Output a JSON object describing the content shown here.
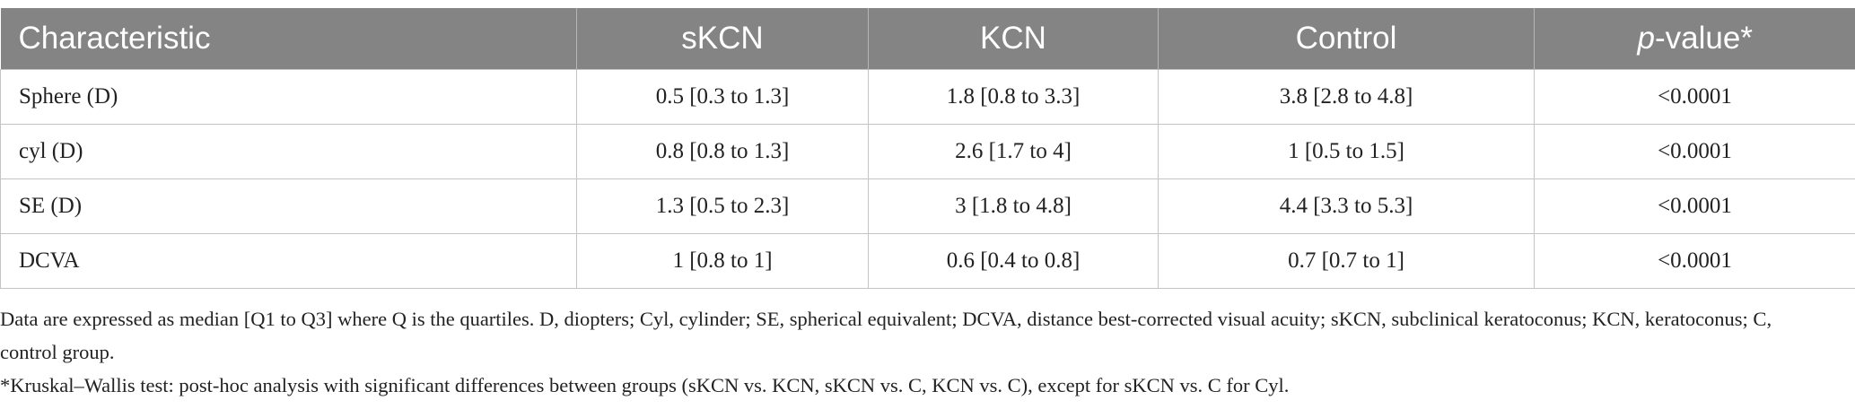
{
  "table": {
    "header": [
      "Characteristic",
      "sKCN",
      "KCN",
      "Control",
      [
        "p",
        "-value*"
      ]
    ],
    "rows": [
      [
        "Sphere (D)",
        "0.5 [0.3 to 1.3]",
        "1.8 [0.8 to 3.3]",
        "3.8 [2.8 to 4.8]",
        "<0.0001"
      ],
      [
        "cyl (D)",
        "0.8 [0.8 to 1.3]",
        "2.6 [1.7 to 4]",
        "1 [0.5 to 1.5]",
        "<0.0001"
      ],
      [
        "SE (D)",
        "1.3 [0.5 to 2.3]",
        "3 [1.8 to 4.8]",
        "4.4 [3.3 to 5.3]",
        "<0.0001"
      ],
      [
        "DCVA",
        "1 [0.8 to 1]",
        "0.6 [0.4 to 0.8]",
        "0.7 [0.7 to 1]",
        "<0.0001"
      ]
    ]
  },
  "notes": [
    "Data are expressed as median [Q1 to Q3] where Q is the quartiles. D, diopters; Cyl, cylinder; SE, spherical equivalent; DCVA, distance best-corrected visual acuity; sKCN, subclinical keratoconus; KCN, keratoconus; C, control group.",
    "*Kruskal–Wallis test: post-hoc analysis with significant differences between groups (sKCN vs. KCN, sKCN vs. C, KCN vs. C), except for sKCN vs. C for Cyl."
  ]
}
